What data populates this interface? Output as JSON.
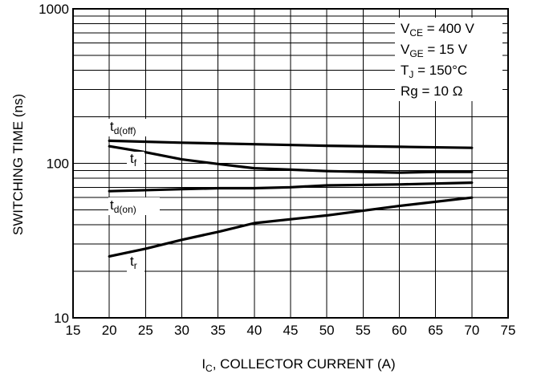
{
  "chart_data": {
    "type": "line",
    "xlabel": "I",
    "xlabel_sub": "C",
    "xlabel_rest": ", COLLECTOR CURRENT (A)",
    "ylabel": "SWITCHING TIME (ns)",
    "y_scale": "log",
    "xlim": [
      15,
      75
    ],
    "ylim": [
      10,
      1000
    ],
    "grid": true,
    "x_ticks": [
      "15",
      "20",
      "25",
      "30",
      "35",
      "40",
      "45",
      "50",
      "55",
      "60",
      "65",
      "70",
      "75"
    ],
    "y_ticks": [
      "10",
      "100",
      "1000"
    ],
    "conditions": [
      {
        "main": "V",
        "sub": "CE",
        "rest": " = 400 V"
      },
      {
        "main": "V",
        "sub": "GE",
        "rest": " = 15 V"
      },
      {
        "main": "T",
        "sub": "J",
        "rest": " = 150°C"
      },
      {
        "main": "Rg = 10 Ω",
        "sub": "",
        "rest": ""
      }
    ],
    "series": [
      {
        "name": "t",
        "sub": "d(off)",
        "x": [
          20,
          30,
          40,
          50,
          60,
          70
        ],
        "y": [
          140,
          136,
          133,
          130,
          128,
          126
        ]
      },
      {
        "name": "t",
        "sub": "f",
        "x": [
          20,
          25,
          30,
          35,
          40,
          45,
          50,
          55,
          60,
          65,
          70
        ],
        "y": [
          129,
          118,
          106,
          99,
          93,
          91,
          89,
          88,
          87,
          88,
          88
        ]
      },
      {
        "name": "t",
        "sub": "d(on)",
        "x": [
          20,
          30,
          35,
          40,
          45,
          50,
          60,
          70
        ],
        "y": [
          66,
          68,
          69,
          69,
          70,
          72,
          73,
          75
        ]
      },
      {
        "name": "t",
        "sub": "r",
        "x": [
          20,
          25,
          30,
          35,
          40,
          50,
          60,
          70
        ],
        "y": [
          25,
          28,
          32,
          36,
          41,
          46,
          53,
          60
        ]
      }
    ]
  }
}
